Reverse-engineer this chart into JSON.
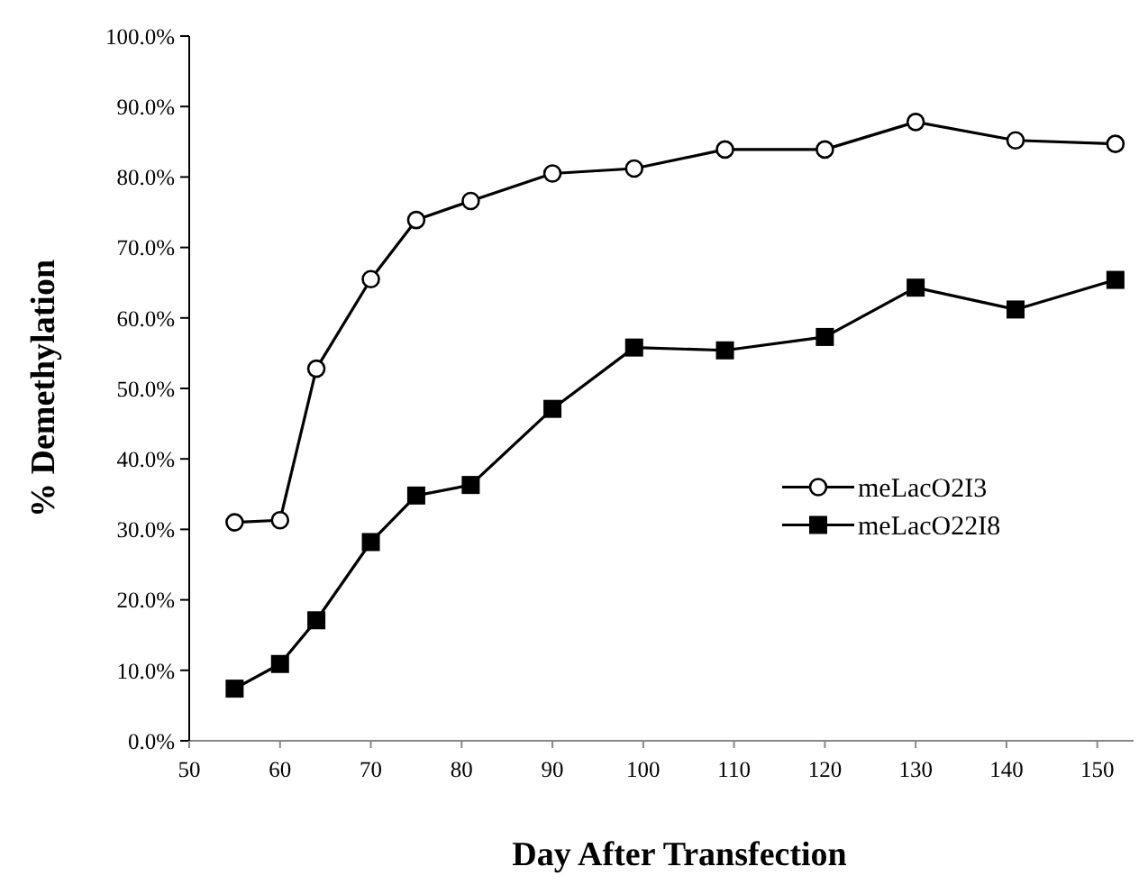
{
  "chart_data": {
    "type": "line",
    "xlabel": "Day After Transfection",
    "ylabel": "% Demethylation",
    "x": [
      55,
      60,
      64,
      70,
      75,
      81,
      90,
      99,
      109,
      120,
      130,
      141,
      152
    ],
    "series": [
      {
        "name": "meLacO2I3",
        "color": "#000000",
        "marker": "circle",
        "values": [
          31.0,
          31.3,
          52.8,
          65.5,
          73.9,
          76.6,
          80.5,
          81.2,
          83.9,
          83.9,
          87.8,
          85.2,
          84.7
        ]
      },
      {
        "name": "meLacO22I8",
        "color": "#000000",
        "marker": "square",
        "values": [
          7.4,
          10.9,
          17.1,
          28.2,
          34.8,
          36.3,
          47.1,
          55.8,
          55.4,
          57.3,
          64.3,
          61.2,
          65.4
        ]
      }
    ],
    "xlim": [
      50,
      154
    ],
    "xticks": [
      50,
      60,
      70,
      80,
      90,
      100,
      110,
      120,
      130,
      140,
      150
    ],
    "ylim": [
      0,
      100
    ],
    "yticks": [
      {
        "value": 0,
        "label": "0.0%"
      },
      {
        "value": 10,
        "label": "10.0%"
      },
      {
        "value": 20,
        "label": "20.0%"
      },
      {
        "value": 30,
        "label": "30.0%"
      },
      {
        "value": 40,
        "label": "40.0%"
      },
      {
        "value": 50,
        "label": "50.0%"
      },
      {
        "value": 60,
        "label": "60.0%"
      },
      {
        "value": 70,
        "label": "70.0%"
      },
      {
        "value": 80,
        "label": "80.0%"
      },
      {
        "value": 90,
        "label": "90.0%"
      },
      {
        "value": 100,
        "label": "100.0%"
      }
    ],
    "grid": false,
    "legend": "right",
    "line_style": "solid"
  }
}
